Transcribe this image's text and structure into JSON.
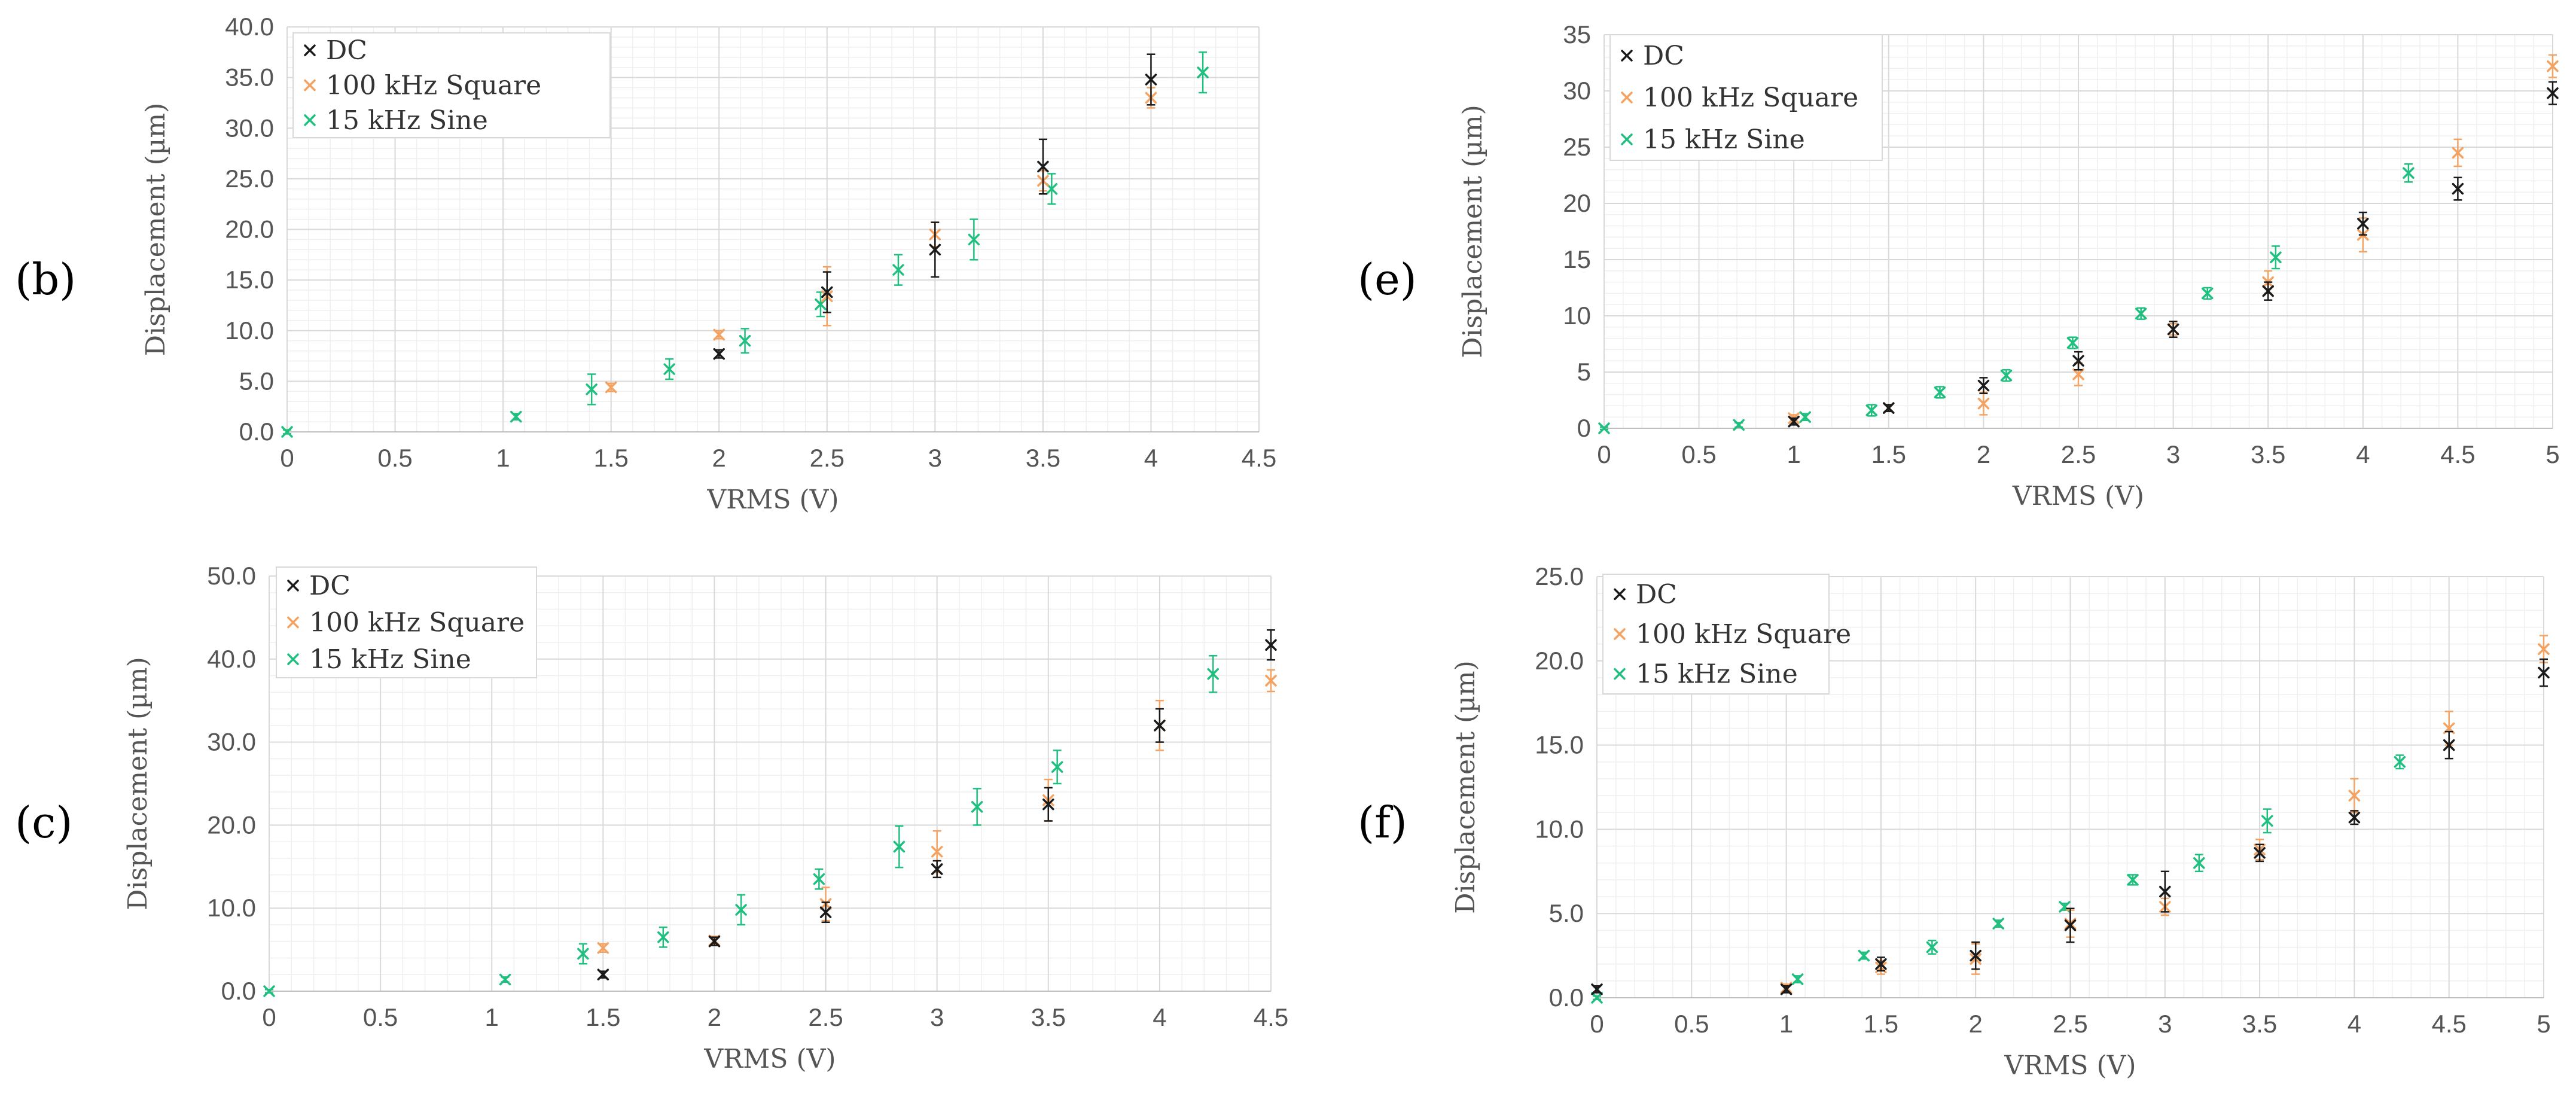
{
  "series_styles": [
    {
      "name": "DC",
      "color": "#1a1a1a"
    },
    {
      "name": "100 kHz Square",
      "color": "#f4a261"
    },
    {
      "name": "15 kHz Sine",
      "color": "#1fbf7f"
    }
  ],
  "chart_data": [
    {
      "type": "scatter",
      "panel": "(b)",
      "title": "",
      "xlabel": "VRMS (V)",
      "ylabel": "Displacement (µm)",
      "xlim": [
        0,
        4.5
      ],
      "ylim": [
        0,
        40
      ],
      "xticks": [
        "0",
        "0.5",
        "1",
        "1.5",
        "2",
        "2.5",
        "3",
        "3.5",
        "4",
        "4.5"
      ],
      "yticks": [
        "0.0",
        "5.0",
        "10.0",
        "15.0",
        "20.0",
        "25.0",
        "30.0",
        "35.0",
        "40.0"
      ],
      "legend": [
        "DC",
        "100 kHz Square",
        "15 kHz Sine"
      ],
      "series": [
        {
          "name": "DC",
          "x": [
            2,
            2.5,
            3,
            3.5,
            4
          ],
          "y": [
            7.7,
            13.8,
            18.0,
            26.2,
            34.8
          ],
          "err": [
            0.4,
            2.0,
            2.7,
            2.7,
            2.5
          ]
        },
        {
          "name": "100 kHz Square",
          "x": [
            1.5,
            2,
            2.5,
            3,
            3.5,
            4
          ],
          "y": [
            4.4,
            9.6,
            13.4,
            19.5,
            24.8,
            33.0
          ],
          "err": [
            0.4,
            0.4,
            2.9,
            1.2,
            1.0,
            1.0
          ]
        },
        {
          "name": "15 kHz Sine",
          "x": [
            0,
            1.06,
            1.41,
            1.77,
            2.12,
            2.47,
            2.83,
            3.18,
            3.54,
            4.24
          ],
          "y": [
            0,
            1.5,
            4.2,
            6.2,
            9.0,
            12.6,
            16.0,
            19.0,
            24.0,
            35.5
          ],
          "err": [
            0.2,
            0.3,
            1.5,
            1.0,
            1.2,
            1.2,
            1.5,
            2.0,
            1.5,
            2.0
          ]
        }
      ]
    },
    {
      "type": "scatter",
      "panel": "(c)",
      "title": "",
      "xlabel": "VRMS (V)",
      "ylabel": "Displacement (µm)",
      "xlim": [
        0,
        4.5
      ],
      "ylim": [
        0,
        50
      ],
      "xticks": [
        "0",
        "0.5",
        "1",
        "1.5",
        "2",
        "2.5",
        "3",
        "3.5",
        "4",
        "4.5"
      ],
      "yticks": [
        "0.0",
        "10.0",
        "20.0",
        "30.0",
        "40.0",
        "50.0"
      ],
      "legend": [
        "DC",
        "100 kHz Square",
        "15 kHz Sine"
      ],
      "series": [
        {
          "name": "DC",
          "x": [
            1.5,
            2,
            2.5,
            3,
            3.5,
            4,
            4.5
          ],
          "y": [
            2.0,
            6.0,
            9.5,
            14.7,
            22.5,
            32.0,
            41.7
          ],
          "err": [
            0.4,
            0.5,
            1.2,
            1.0,
            2.0,
            2.0,
            1.8
          ]
        },
        {
          "name": "100 kHz Square",
          "x": [
            1.5,
            2,
            2.5,
            3,
            3.5,
            4,
            4.5
          ],
          "y": [
            5.2,
            6.1,
            10.5,
            16.8,
            23.0,
            32.0,
            37.4
          ],
          "err": [
            0.5,
            0.5,
            2.0,
            2.5,
            2.5,
            3.0,
            1.3
          ]
        },
        {
          "name": "15 kHz Sine",
          "x": [
            0,
            1.06,
            1.41,
            1.77,
            2.12,
            2.47,
            2.83,
            3.18,
            3.54,
            4.24
          ],
          "y": [
            0,
            1.4,
            4.5,
            6.5,
            9.8,
            13.5,
            17.4,
            22.2,
            27.0,
            38.2
          ],
          "err": [
            0.2,
            0.3,
            1.2,
            1.2,
            1.8,
            1.2,
            2.5,
            2.2,
            2.0,
            2.2
          ]
        }
      ]
    },
    {
      "type": "scatter",
      "panel": "(e)",
      "title": "",
      "xlabel": "VRMS (V)",
      "ylabel": "Displacement (µm)",
      "xlim": [
        0,
        5
      ],
      "ylim": [
        0,
        35
      ],
      "xticks": [
        "0",
        "0.5",
        "1",
        "1.5",
        "2",
        "2.5",
        "3",
        "3.5",
        "4",
        "4.5",
        "5"
      ],
      "yticks": [
        "0",
        "5",
        "10",
        "15",
        "20",
        "25",
        "30",
        "35"
      ],
      "legend": [
        "DC",
        "100 kHz Square",
        "15 kHz Sine"
      ],
      "series": [
        {
          "name": "DC",
          "x": [
            1,
            1.5,
            2,
            2.5,
            3,
            3.5,
            4,
            4.5,
            5
          ],
          "y": [
            0.6,
            1.8,
            3.8,
            6.0,
            8.8,
            12.2,
            18.2,
            21.3,
            29.8
          ],
          "err": [
            0.3,
            0.3,
            0.7,
            0.8,
            0.7,
            0.8,
            1.0,
            1.0,
            1.0
          ]
        },
        {
          "name": "100 kHz Square",
          "x": [
            1,
            1.5,
            2,
            2.5,
            3,
            3.5,
            4,
            4.5,
            5
          ],
          "y": [
            0.9,
            1.8,
            2.2,
            4.8,
            8.8,
            13.0,
            17.2,
            24.5,
            32.2
          ],
          "err": [
            0.3,
            0.3,
            1.0,
            1.0,
            0.5,
            1.0,
            1.5,
            1.2,
            1.0
          ]
        },
        {
          "name": "15 kHz Sine",
          "x": [
            0,
            0.71,
            1.06,
            1.41,
            1.77,
            2.12,
            2.47,
            2.83,
            3.18,
            3.54,
            4.24
          ],
          "y": [
            0,
            0.3,
            1.0,
            1.6,
            3.2,
            4.7,
            7.6,
            10.2,
            12.0,
            15.2,
            22.7
          ],
          "err": [
            0.1,
            0.2,
            0.3,
            0.5,
            0.5,
            0.5,
            0.5,
            0.5,
            0.5,
            1.0,
            0.8
          ]
        }
      ]
    },
    {
      "type": "scatter",
      "panel": "(f)",
      "title": "",
      "xlabel": "VRMS (V)",
      "ylabel": "Displacement (µm)",
      "xlim": [
        0,
        5
      ],
      "ylim": [
        0,
        25
      ],
      "xticks": [
        "0",
        "0.5",
        "1",
        "1.5",
        "2",
        "2.5",
        "3",
        "3.5",
        "4",
        "4.5",
        "5"
      ],
      "yticks": [
        "0.0",
        "5.0",
        "10.0",
        "15.0",
        "20.0",
        "25.0"
      ],
      "legend": [
        "DC",
        "100 kHz Square",
        "15 kHz Sine"
      ],
      "series": [
        {
          "name": "DC",
          "x": [
            0,
            1,
            1.5,
            2,
            2.5,
            3,
            3.5,
            4,
            4.5,
            5
          ],
          "y": [
            0.5,
            0.5,
            2.0,
            2.5,
            4.3,
            6.3,
            8.6,
            10.7,
            15.0,
            19.3
          ],
          "err": [
            0.2,
            0.2,
            0.4,
            0.8,
            1.0,
            1.2,
            0.5,
            0.4,
            0.8,
            0.8
          ]
        },
        {
          "name": "100 kHz Square",
          "x": [
            1,
            1.5,
            2,
            2.5,
            3,
            3.5,
            4,
            4.5,
            5
          ],
          "y": [
            0.6,
            1.8,
            2.3,
            4.4,
            5.4,
            8.8,
            12.0,
            16.0,
            20.7
          ],
          "err": [
            0.2,
            0.4,
            0.9,
            0.8,
            0.5,
            0.6,
            1.0,
            1.0,
            0.8
          ]
        },
        {
          "name": "15 kHz Sine",
          "x": [
            0,
            1.06,
            1.41,
            1.77,
            2.12,
            2.47,
            2.83,
            3.18,
            3.54,
            4.24
          ],
          "y": [
            0,
            1.1,
            2.5,
            3.0,
            4.4,
            5.4,
            7.0,
            8.0,
            10.5,
            14.0
          ],
          "err": [
            0.1,
            0.2,
            0.2,
            0.4,
            0.2,
            0.2,
            0.3,
            0.5,
            0.7,
            0.4
          ]
        }
      ]
    }
  ]
}
